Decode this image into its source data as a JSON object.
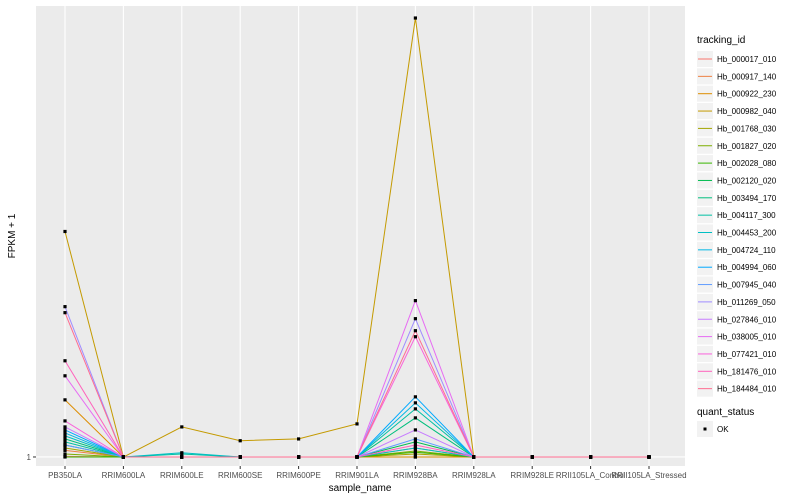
{
  "chart_data": {
    "type": "line",
    "xlabel": "sample_name",
    "ylabel": "FPKM + 1",
    "y_ticks": [
      1
    ],
    "ylim": [
      0.85,
      8.5
    ],
    "categories": [
      "PB350LA",
      "RRIM600LA",
      "RRIM600LE",
      "RRIM600SE",
      "RRIM600PE",
      "RRIM901LA",
      "RRIM928BA",
      "RRIM928LA",
      "RRIM928LE",
      "RRII105LA_Control",
      "RRII105LA_Stressed"
    ],
    "legend_title": "tracking_id",
    "legend_position": "right",
    "grid": true,
    "shape_legend": {
      "title": "quant_status",
      "items": [
        "OK"
      ]
    },
    "series": [
      {
        "name": "Hb_000017_010",
        "color": "#F8766D",
        "values": [
          1.01,
          1,
          1,
          1,
          1,
          1,
          1.0,
          1,
          1,
          1,
          1
        ]
      },
      {
        "name": "Hb_000917_140",
        "color": "#EE8042",
        "values": [
          1.11,
          1,
          1,
          1,
          1,
          1,
          1.15,
          1,
          1,
          1,
          1
        ]
      },
      {
        "name": "Hb_000922_230",
        "color": "#DD8D00",
        "values": [
          1.95,
          1,
          1,
          1,
          1,
          1,
          1.0,
          1,
          1,
          1,
          1
        ]
      },
      {
        "name": "Hb_000982_040",
        "color": "#C49A00",
        "values": [
          4.75,
          1,
          1.5,
          1.27,
          1.3,
          1.55,
          8.3,
          1,
          1,
          1,
          1
        ]
      },
      {
        "name": "Hb_001768_030",
        "color": "#A3A500",
        "values": [
          1.15,
          1,
          1,
          1,
          1,
          1,
          1.05,
          1,
          1,
          1,
          1
        ]
      },
      {
        "name": "Hb_001827_020",
        "color": "#7CAE00",
        "values": [
          1.05,
          1,
          1,
          1,
          1,
          1,
          1.1,
          1,
          1,
          1,
          1
        ]
      },
      {
        "name": "Hb_002028_080",
        "color": "#39B600",
        "values": [
          1.0,
          1,
          1,
          1,
          1,
          1,
          1.08,
          1,
          1,
          1,
          1
        ]
      },
      {
        "name": "Hb_002120_020",
        "color": "#00BB4E",
        "values": [
          1.2,
          1,
          1,
          1,
          1,
          1,
          1.25,
          1,
          1,
          1,
          1
        ]
      },
      {
        "name": "Hb_003494_170",
        "color": "#00BF7D",
        "values": [
          1.3,
          1,
          1,
          1,
          1,
          1,
          1.65,
          1,
          1,
          1,
          1
        ]
      },
      {
        "name": "Hb_004117_300",
        "color": "#00C1A3",
        "values": [
          1.25,
          1,
          1.05,
          1,
          1,
          1,
          1.8,
          1,
          1,
          1,
          1
        ]
      },
      {
        "name": "Hb_004453_200",
        "color": "#00BFC4",
        "values": [
          1.35,
          1,
          1.07,
          1,
          1,
          1,
          1.15,
          1,
          1,
          1,
          1
        ]
      },
      {
        "name": "Hb_004724_110",
        "color": "#00B8E5",
        "values": [
          1.4,
          1,
          1,
          1,
          1,
          1,
          1.9,
          1,
          1,
          1,
          1
        ]
      },
      {
        "name": "Hb_004994_060",
        "color": "#00A9FF",
        "values": [
          1.45,
          1,
          1,
          1,
          1,
          1,
          2.0,
          1,
          1,
          1,
          1
        ]
      },
      {
        "name": "Hb_007945_040",
        "color": "#619CFF",
        "values": [
          1.2,
          1,
          1,
          1,
          1,
          1,
          1.3,
          1,
          1,
          1,
          1
        ]
      },
      {
        "name": "Hb_011269_050",
        "color": "#9F8CFF",
        "values": [
          3.5,
          1,
          1,
          1,
          1,
          1,
          3.3,
          1,
          1,
          1,
          1
        ]
      },
      {
        "name": "Hb_027846_010",
        "color": "#C77CFF",
        "values": [
          1.5,
          1,
          1,
          1,
          1,
          1,
          1.45,
          1,
          1,
          1,
          1
        ]
      },
      {
        "name": "Hb_038005_010",
        "color": "#E76BF3",
        "values": [
          2.35,
          1,
          1,
          1,
          1,
          1,
          3.6,
          1,
          1,
          1,
          1
        ]
      },
      {
        "name": "Hb_077421_010",
        "color": "#FA62DB",
        "values": [
          1.6,
          1,
          1,
          1,
          1,
          1,
          3.0,
          1,
          1,
          1,
          1
        ]
      },
      {
        "name": "Hb_181476_010",
        "color": "#FF62BC",
        "values": [
          2.6,
          1,
          1,
          1,
          1,
          1,
          1.2,
          1,
          1,
          1,
          1
        ]
      },
      {
        "name": "Hb_184484_010",
        "color": "#FF6C90",
        "values": [
          3.4,
          1,
          1,
          1,
          1,
          1,
          3.1,
          1,
          1,
          1,
          1
        ]
      }
    ]
  }
}
